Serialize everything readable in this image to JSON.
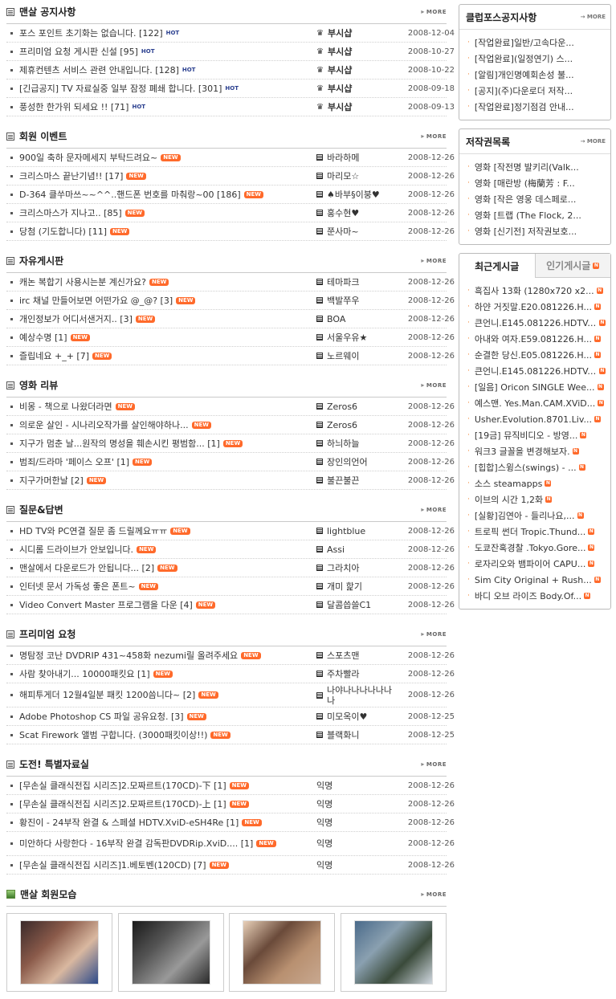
{
  "more_label": "MORE",
  "sections": [
    {
      "id": "notice",
      "title": "맨살 공지사항",
      "icon": "list-box-icon",
      "rows": [
        {
          "title": "포스 포인트 초기화는 없습니다. [122]",
          "badge": "HOT",
          "author": "부시샵",
          "author_icon": "admin",
          "date": "2008-12-04"
        },
        {
          "title": "프리미엄 요청 게시판 신설 [95]",
          "badge": "HOT",
          "author": "부시샵",
          "author_icon": "admin",
          "date": "2008-10-27"
        },
        {
          "title": "제휴컨텐츠 서비스 관련 안내입니다. [128]",
          "badge": "HOT",
          "author": "부시샵",
          "author_icon": "admin",
          "date": "2008-10-22"
        },
        {
          "title": "[긴급공지] TV 자료실중 일부 잠정 폐쇄 합니다. [301]",
          "badge": "HOT",
          "author": "부시샵",
          "author_icon": "admin",
          "date": "2008-09-18"
        },
        {
          "title": "풍성한 한가위 되세요 !! [71]",
          "badge": "HOT",
          "author": "부시샵",
          "author_icon": "admin",
          "date": "2008-09-13"
        }
      ]
    },
    {
      "id": "event",
      "title": "회원 이벤트",
      "icon": "list-box-icon",
      "rows": [
        {
          "title": "900일 축하 문자메세지 부탁드려요~",
          "badge": "NEW",
          "author": "바라하메",
          "author_icon": "level",
          "date": "2008-12-26"
        },
        {
          "title": "크리스마스 끝난기념!! [17]",
          "badge": "NEW",
          "author": "마리모☆",
          "author_icon": "level",
          "date": "2008-12-26"
        },
        {
          "title": "D-364 클쑤마쓰~~^^..핸드폰 번호를 마춰랑~00 [186]",
          "badge": "NEW",
          "author": "♠바부§이붕♥",
          "author_icon": "level",
          "date": "2008-12-26"
        },
        {
          "title": "크리스마스가 지나고.. [85]",
          "badge": "NEW",
          "author": "홍수현♥",
          "author_icon": "level",
          "date": "2008-12-26"
        },
        {
          "title": "당첨 (기도합니다) [11]",
          "badge": "NEW",
          "author": "쭌사마~",
          "author_icon": "level",
          "date": "2008-12-26"
        }
      ]
    },
    {
      "id": "free",
      "title": "자유게시판",
      "icon": "list-box-icon",
      "rows": [
        {
          "title": "캐논 복합기 사용시는분 계신가요?",
          "badge": "NEW",
          "author": "테마파크",
          "author_icon": "level",
          "date": "2008-12-26"
        },
        {
          "title": "irc 채널 만들어보면 어떤가요 @_@? [3]",
          "badge": "NEW",
          "author": "백발쭈우",
          "author_icon": "level",
          "date": "2008-12-26"
        },
        {
          "title": "개인정보가 어디서샌거지.. [3]",
          "badge": "NEW",
          "author": "BOA",
          "author_icon": "level",
          "date": "2008-12-26"
        },
        {
          "title": "예상수명 [1]",
          "badge": "NEW",
          "author": "서울우유★",
          "author_icon": "level",
          "date": "2008-12-26"
        },
        {
          "title": "즐립네요 +_+ [7]",
          "badge": "NEW",
          "author": "노르웨이",
          "author_icon": "level",
          "date": "2008-12-26"
        }
      ]
    },
    {
      "id": "review",
      "title": "영화 리뷰",
      "icon": "list-box-icon",
      "rows": [
        {
          "title": "비몽 - 책으로 나왔더라면",
          "badge": "NEW",
          "author": "Zeros6",
          "author_icon": "level",
          "date": "2008-12-26"
        },
        {
          "title": "의로운 살인 - 시나리오작가를 살인해야하나...",
          "badge": "NEW",
          "author": "Zeros6",
          "author_icon": "level",
          "date": "2008-12-26"
        },
        {
          "title": "지구가 멈춘 날...원작의 명성을 훼손시킨 평범함... [1]",
          "badge": "NEW",
          "author": "하늬하늘",
          "author_icon": "level",
          "date": "2008-12-26"
        },
        {
          "title": "범죄/드라마 '페이스 오프' [1]",
          "badge": "NEW",
          "author": "장인의언어",
          "author_icon": "level",
          "date": "2008-12-26"
        },
        {
          "title": "지구가머한날 [2]",
          "badge": "NEW",
          "author": "불끈불끈",
          "author_icon": "level",
          "date": "2008-12-26"
        }
      ]
    },
    {
      "id": "qna",
      "title": "질문&답변",
      "icon": "list-box-icon",
      "rows": [
        {
          "title": "HD TV와 PC연결 질문 좀 드릴께요ㅠㅠ",
          "badge": "NEW",
          "author": "lightblue",
          "author_icon": "level",
          "date": "2008-12-26"
        },
        {
          "title": "시디롬 드라이브가 안보입니다.",
          "badge": "NEW",
          "author": "Assi",
          "author_icon": "level",
          "date": "2008-12-26"
        },
        {
          "title": "맨살에서 다운로드가 안됩니다... [2]",
          "badge": "NEW",
          "author": "그라치아",
          "author_icon": "level",
          "date": "2008-12-26"
        },
        {
          "title": "인터넷 문서 가독성 좋은 폰트~",
          "badge": "NEW",
          "author": "개미 핥기",
          "author_icon": "level",
          "date": "2008-12-26"
        },
        {
          "title": "Video Convert Master 프로그램을 다운 [4]",
          "badge": "NEW",
          "author": "달콤씁쓸C1",
          "author_icon": "level",
          "date": "2008-12-26"
        }
      ]
    },
    {
      "id": "premium",
      "title": "프리미엄 요청",
      "icon": "list-box-icon",
      "rows": [
        {
          "title": "명탐정 코난 DVDRIP 431~458화 nezumi릴 올려주세요",
          "badge": "NEW",
          "author": "스포츠맨",
          "author_icon": "level",
          "date": "2008-12-26"
        },
        {
          "title": "사람 찾아내기... 10000패킷요 [1]",
          "badge": "NEW",
          "author": "주차빨라",
          "author_icon": "level",
          "date": "2008-12-26"
        },
        {
          "title": "해피투게더 12월4일분 패킷 1200씀니다~ [2]",
          "badge": "NEW",
          "author": "나야나나나나나나나",
          "author_icon": "level",
          "date": "2008-12-26",
          "tall": true
        },
        {
          "title": "Adobe Photoshop CS 파일 공유요청. [3]",
          "badge": "NEW",
          "author": "미모옥이♥",
          "author_icon": "level",
          "date": "2008-12-25"
        },
        {
          "title": "Scat Firework 앨범 구합니다. (3000패킷이상!!)",
          "badge": "NEW",
          "author": "블랙화니",
          "author_icon": "level",
          "date": "2008-12-25"
        }
      ]
    },
    {
      "id": "challenge",
      "title": "도전! 특별자료실",
      "icon": "list-box-icon",
      "rows": [
        {
          "title": "[무손실 클래식전집 시리즈]2.모짜르트(170CD)-下 [1]",
          "badge": "NEW",
          "author": "익명",
          "author_icon": "none",
          "date": "2008-12-26"
        },
        {
          "title": "[무손실 클래식전집 시리즈]2.모짜르트(170CD)-上 [1]",
          "badge": "NEW",
          "author": "익명",
          "author_icon": "none",
          "date": "2008-12-26"
        },
        {
          "title": "황진이 - 24부작 완결 & 스페셜 HDTV.XviD-eSH4Re [1]",
          "badge": "NEW",
          "author": "익명",
          "author_icon": "none",
          "date": "2008-12-26"
        },
        {
          "title": "미안하다 사랑한다 - 16부작 완결 감독판DVDRip.XviD.... [1]",
          "badge": "NEW",
          "author": "익명",
          "author_icon": "none",
          "date": "2008-12-26",
          "tall": true
        },
        {
          "title": "[무손실 클래식전집 시리즈]1.베토벤(120CD) [7]",
          "badge": "NEW",
          "author": "익명",
          "author_icon": "none",
          "date": "2008-12-26"
        }
      ]
    }
  ],
  "photos_section": {
    "title": "맨살 회원모습"
  },
  "photo_colors": [
    [
      "#3a2a2a",
      "#8a5a4a",
      "#d9b8a0",
      "#2d4a8a"
    ],
    [
      "#1a1a1a",
      "#555555",
      "#999999",
      "#2a2a2a"
    ],
    [
      "#e8d0b8",
      "#6a4a3a",
      "#b89070",
      "#c8a890"
    ],
    [
      "#4a6a8a",
      "#8aa0b0",
      "#3a4a3a",
      "#d0d8e0"
    ]
  ],
  "right": {
    "club_notice": {
      "title": "클럽포스공지사항",
      "more": "MORE",
      "items": [
        "[작업완료]일반/고속다운...",
        "[작업완료](일정연기) 스...",
        "[알림]개인명예회손성 불...",
        "[공지](주)다운로더 저작...",
        "[작업완료]정기점검 안내..."
      ]
    },
    "copyright": {
      "title": "저작권목록",
      "more": "MORE",
      "items": [
        "영화 [작전명 발키리(Valk...",
        "영화 [매란방 (梅蘭芳 : F...",
        "영화 [작은 영웅 데스페로...",
        "영화 [트랩 (The Flock, 2...",
        "영화 [신기전] 저작권보호..."
      ]
    },
    "recent": {
      "tab_on": "최근게시글",
      "tab_off": "인기게시글",
      "items": [
        "흑집사 13화 (1280x720 x2...",
        "하얀 거짓말.E20.081226.H...",
        "큰언니.E145.081226.HDTV....",
        "아내와 여자.E59.081226.H...",
        "순결한 당신.E05.081226.H...",
        "큰언니.E145.081226.HDTV....",
        "[일음] Oricon SINGLE Wee...",
        "예스맨. Yes.Man.CAM.XViD...",
        "Usher.Evolution.8701.Liv...",
        "[19금] 뮤직비디오 - 방영...",
        "워크3 글꼴을 변경해보자.",
        "[힙합]스윙스(swings) - ...",
        "소스 steamapps",
        "이브의 시간 1,2화",
        "[실황]김연아 - 들리나요,...",
        "트로픽 썬더 Tropic.Thund...",
        "도쿄잔혹경찰 .Tokyo.Gore...",
        "로자리오와 뱀파이어 CAPU...",
        "Sim City Original + Rush...",
        "바디 오브 라이즈 Body.Of..."
      ],
      "badge": "N"
    }
  }
}
